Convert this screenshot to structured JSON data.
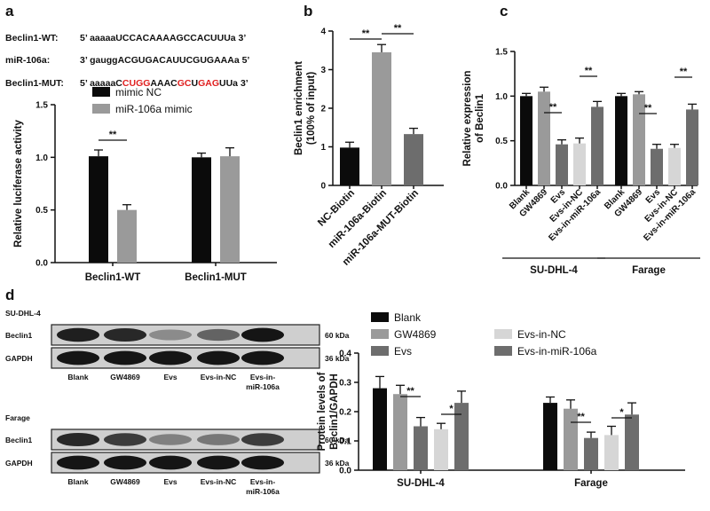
{
  "figure": {
    "panel_labels": [
      "a",
      "b",
      "c",
      "d"
    ],
    "sequences": [
      {
        "label": "Beclin1-WT:",
        "segments": [
          {
            "t": "5’  aaaaaUCCACAAAAGCCACUUUa  3’",
            "c": "k"
          }
        ]
      },
      {
        "label": "miR-106a:",
        "segments": [
          {
            "t": "3’  gauggACGUGACAUUCGUGAAAa  5’",
            "c": "k"
          }
        ]
      },
      {
        "label": "Beclin1-MUT:",
        "segments": [
          {
            "t": "5’  aaaaaC",
            "c": "k"
          },
          {
            "t": "C",
            "c": "r"
          },
          {
            "t": "UGG",
            "c": "r"
          },
          {
            "t": "AAAC",
            "c": "k"
          },
          {
            "t": "GC",
            "c": "r"
          },
          {
            "t": "U",
            "c": "k"
          },
          {
            "t": "GAG",
            "c": "r"
          },
          {
            "t": "UUa  3’",
            "c": "k"
          }
        ]
      }
    ],
    "western": {
      "blocks": [
        {
          "title": "SU-DHL-4",
          "bands": [
            "Beclin1",
            "GAPDH"
          ],
          "sizes": [
            "60 kDa",
            "36 kDa"
          ]
        },
        {
          "title": "Farage",
          "bands": [
            "Beclin1",
            "GAPDH"
          ],
          "sizes": [
            "60 kDa",
            "36 kDa"
          ]
        }
      ],
      "lanes": [
        "Blank",
        "GW4869",
        "Evs",
        "Evs-in-NC",
        "Evs-in-\nmiR-106a"
      ],
      "band_intensity": {
        "SU-DHL-4": {
          "Beclin1": [
            0.9,
            0.85,
            0.35,
            0.55,
            0.95
          ],
          "GAPDH": [
            0.95,
            0.95,
            0.95,
            0.95,
            0.95
          ]
        },
        "Farage": {
          "Beclin1": [
            0.85,
            0.75,
            0.4,
            0.45,
            0.75
          ],
          "GAPDH": [
            0.95,
            0.95,
            0.95,
            0.95,
            0.95
          ]
        }
      }
    },
    "colors": {
      "black": "#0b0b0b",
      "gray": "#9a9a9a",
      "darkgray": "#6d6d6d",
      "lightgray": "#d6d6d6",
      "red": "#e02020"
    }
  },
  "chart_data": [
    {
      "panel": "a",
      "type": "bar",
      "categories": [
        "Beclin1-WT",
        "Beclin1-MUT"
      ],
      "series": [
        {
          "name": "mimic NC",
          "color": "#0b0b0b",
          "values": [
            1.01,
            1.0
          ],
          "errors": [
            0.06,
            0.04
          ]
        },
        {
          "name": "miR-106a mimic",
          "color": "#9a9a9a",
          "values": [
            0.5,
            1.01
          ],
          "errors": [
            0.05,
            0.08
          ]
        }
      ],
      "ylabel": "Relative luciferase activity",
      "ylim": [
        0,
        1.5
      ],
      "yticks": [
        "0.0",
        "0.5",
        "1.0",
        "1.5"
      ],
      "annotations": [
        {
          "text": "**",
          "between": [
            "Beclin1-WT:mimic NC",
            "Beclin1-WT:miR-106a mimic"
          ]
        }
      ],
      "legend": "top"
    },
    {
      "panel": "b",
      "type": "bar",
      "categories": [
        "NC-Biotin",
        "miR-106a-Biotin",
        "miR-106a-MUT-Biotin"
      ],
      "values": [
        0.98,
        3.45,
        1.33
      ],
      "errors": [
        0.14,
        0.2,
        0.15
      ],
      "colors": [
        "#0b0b0b",
        "#9a9a9a",
        "#6d6d6d"
      ],
      "ylabel": "Beclin1 enrichment\n(100% of input)",
      "ylim": [
        0,
        4
      ],
      "yticks": [
        "0",
        "1",
        "2",
        "3",
        "4"
      ],
      "annotations": [
        {
          "text": "**",
          "between": [
            "NC-Biotin",
            "miR-106a-Biotin"
          ]
        },
        {
          "text": "**",
          "between": [
            "miR-106a-Biotin",
            "miR-106a-MUT-Biotin"
          ]
        }
      ]
    },
    {
      "panel": "c",
      "type": "bar",
      "groups": [
        "SU-DHL-4",
        "Farage"
      ],
      "categories": [
        "Blank",
        "GW4869",
        "Evs",
        "Evs-in-NC",
        "Evs-in-miR-106a"
      ],
      "colors": [
        "#0b0b0b",
        "#9a9a9a",
        "#6d6d6d",
        "#d6d6d6",
        "#6d6d6d"
      ],
      "values": {
        "SU-DHL-4": [
          1.0,
          1.05,
          0.46,
          0.47,
          0.88
        ],
        "Farage": [
          1.0,
          1.02,
          0.41,
          0.42,
          0.85
        ]
      },
      "errors": {
        "SU-DHL-4": [
          0.03,
          0.05,
          0.05,
          0.06,
          0.06
        ],
        "Farage": [
          0.03,
          0.03,
          0.05,
          0.04,
          0.06
        ]
      },
      "ylabel": "Relative expression\nof Beclin1",
      "ylim": [
        0,
        1.5
      ],
      "yticks": [
        "0.0",
        "0.5",
        "1.0",
        "1.5"
      ],
      "annotations": [
        {
          "text": "**",
          "group": "SU-DHL-4",
          "between": [
            "GW4869",
            "Evs"
          ]
        },
        {
          "text": "**",
          "group": "SU-DHL-4",
          "between": [
            "Evs-in-NC",
            "Evs-in-miR-106a"
          ]
        },
        {
          "text": "**",
          "group": "Farage",
          "between": [
            "GW4869",
            "Evs"
          ]
        },
        {
          "text": "**",
          "group": "Farage",
          "between": [
            "Evs-in-NC",
            "Evs-in-miR-106a"
          ]
        }
      ]
    },
    {
      "panel": "d",
      "type": "bar",
      "groups": [
        "SU-DHL-4",
        "Farage"
      ],
      "series": [
        {
          "name": "Blank",
          "color": "#0b0b0b",
          "values": [
            0.28,
            0.23
          ],
          "errors": [
            0.04,
            0.02
          ]
        },
        {
          "name": "GW4869",
          "color": "#9a9a9a",
          "values": [
            0.26,
            0.21
          ],
          "errors": [
            0.03,
            0.03
          ]
        },
        {
          "name": "Evs",
          "color": "#6d6d6d",
          "values": [
            0.15,
            0.11
          ],
          "errors": [
            0.03,
            0.02
          ]
        },
        {
          "name": "Evs-in-NC",
          "color": "#d6d6d6",
          "values": [
            0.14,
            0.12
          ],
          "errors": [
            0.02,
            0.03
          ]
        },
        {
          "name": "Evs-in-miR-106a",
          "color": "#6d6d6d",
          "values": [
            0.23,
            0.19
          ],
          "errors": [
            0.04,
            0.04
          ]
        }
      ],
      "ylabel": "Protein levels of\nBeclin1/GAPDH",
      "ylim": [
        0,
        0.4
      ],
      "yticks": [
        "0.0",
        "0.1",
        "0.2",
        "0.3",
        "0.4"
      ],
      "annotations": [
        {
          "text": "**",
          "group": "SU-DHL-4",
          "between": [
            "GW4869",
            "Evs"
          ]
        },
        {
          "text": "*",
          "group": "SU-DHL-4",
          "between": [
            "Evs-in-NC",
            "Evs-in-miR-106a"
          ]
        },
        {
          "text": "**",
          "group": "Farage",
          "between": [
            "GW4869",
            "Evs"
          ]
        },
        {
          "text": "*",
          "group": "Farage",
          "between": [
            "Evs-in-NC",
            "Evs-in-miR-106a"
          ]
        }
      ],
      "legend": "top"
    }
  ]
}
